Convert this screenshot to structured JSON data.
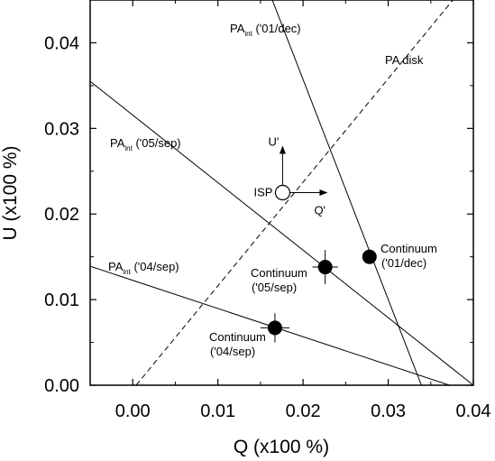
{
  "chart_data": {
    "type": "scatter",
    "xlabel": "Q (x100 %)",
    "ylabel": "U (x100 %)",
    "xlim": [
      -0.005,
      0.04
    ],
    "ylim": [
      0.0,
      0.045
    ],
    "xticks": [
      "0.00",
      "0.01",
      "0.02",
      "0.03",
      "0.04"
    ],
    "yticks": [
      "0.00",
      "0.01",
      "0.02",
      "0.03",
      "0.04"
    ],
    "grid": false,
    "series": [
      {
        "kind": "filled-points-with-errorbars",
        "points": [
          {
            "label": [
              "Continuum",
              "('04/sep)"
            ],
            "x": 0.0167,
            "y": 0.0067,
            "xerr": 0.0017,
            "yerr": 0.0017
          },
          {
            "label": [
              "Continuum",
              "('05/sep)"
            ],
            "x": 0.0226,
            "y": 0.0138,
            "xerr": 0.0015,
            "yerr": 0.002
          },
          {
            "label": [
              "Continuum",
              "('01/dec)"
            ],
            "x": 0.0278,
            "y": 0.015,
            "xerr": 0,
            "yerr": 0
          }
        ]
      },
      {
        "kind": "open-point",
        "points": [
          {
            "label": "ISP",
            "x": 0.0176,
            "y": 0.0225
          }
        ]
      }
    ],
    "lines": [
      {
        "label": {
          "main": "PA",
          "sub": "int",
          "rest": " ('01/dec)"
        },
        "style": "solid",
        "from": [
          0.016,
          0.046
        ],
        "to": [
          0.0339,
          0.0
        ]
      },
      {
        "label": {
          "main": "PA",
          "sub": "int",
          "rest": " ('05/sep)"
        },
        "style": "solid",
        "from": [
          -0.005,
          0.0355
        ],
        "to": [
          0.04,
          0.0
        ]
      },
      {
        "label": {
          "main": "PA",
          "sub": "int",
          "rest": " ('04/sep)"
        },
        "style": "solid",
        "from": [
          -0.005,
          0.0139
        ],
        "to": [
          0.0372,
          0.0
        ]
      },
      {
        "label": {
          "main": "PA disk",
          "sub": "",
          "rest": ""
        },
        "style": "dashed",
        "from": [
          0.0004,
          0.0
        ],
        "to": [
          0.0376,
          0.045
        ]
      }
    ],
    "local_axes": {
      "origin": [
        0.0176,
        0.0225
      ],
      "u_label": "U'",
      "q_label": "Q'"
    }
  }
}
